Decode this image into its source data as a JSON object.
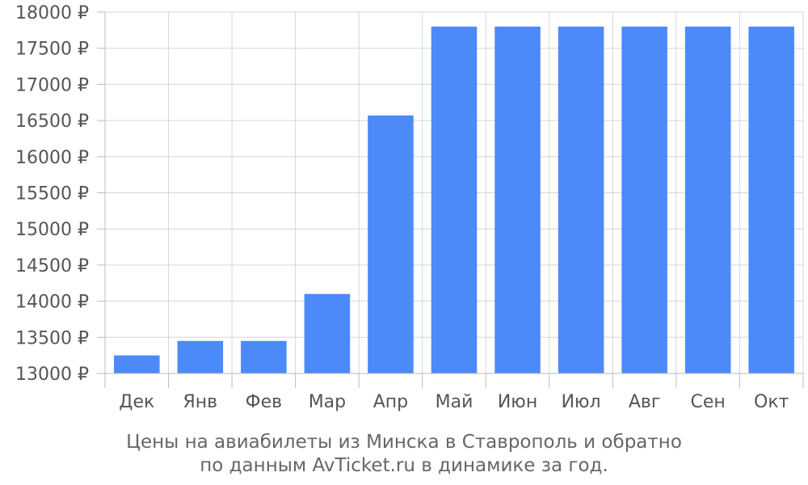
{
  "chart_data": {
    "type": "bar",
    "categories": [
      "Дек",
      "Янв",
      "Фев",
      "Мар",
      "Апр",
      "Май",
      "Июн",
      "Июл",
      "Авг",
      "Сен",
      "Окт"
    ],
    "values": [
      13250,
      13450,
      13450,
      14100,
      16570,
      17800,
      17800,
      17800,
      17800,
      17800,
      17800
    ],
    "ylim": [
      13000,
      18000
    ],
    "yticks": [
      13000,
      13500,
      14000,
      14500,
      15000,
      15500,
      16000,
      16500,
      17000,
      17500,
      18000
    ],
    "y_unit": "₽",
    "grid": true,
    "bar_color": "#4d8af9",
    "grid_color": "#d6d6d6",
    "caption_line1": "Цены на авиабилеты из Минска в Ставрополь и обратно",
    "caption_line2": "по данным AvTicket.ru в динамике за год."
  }
}
